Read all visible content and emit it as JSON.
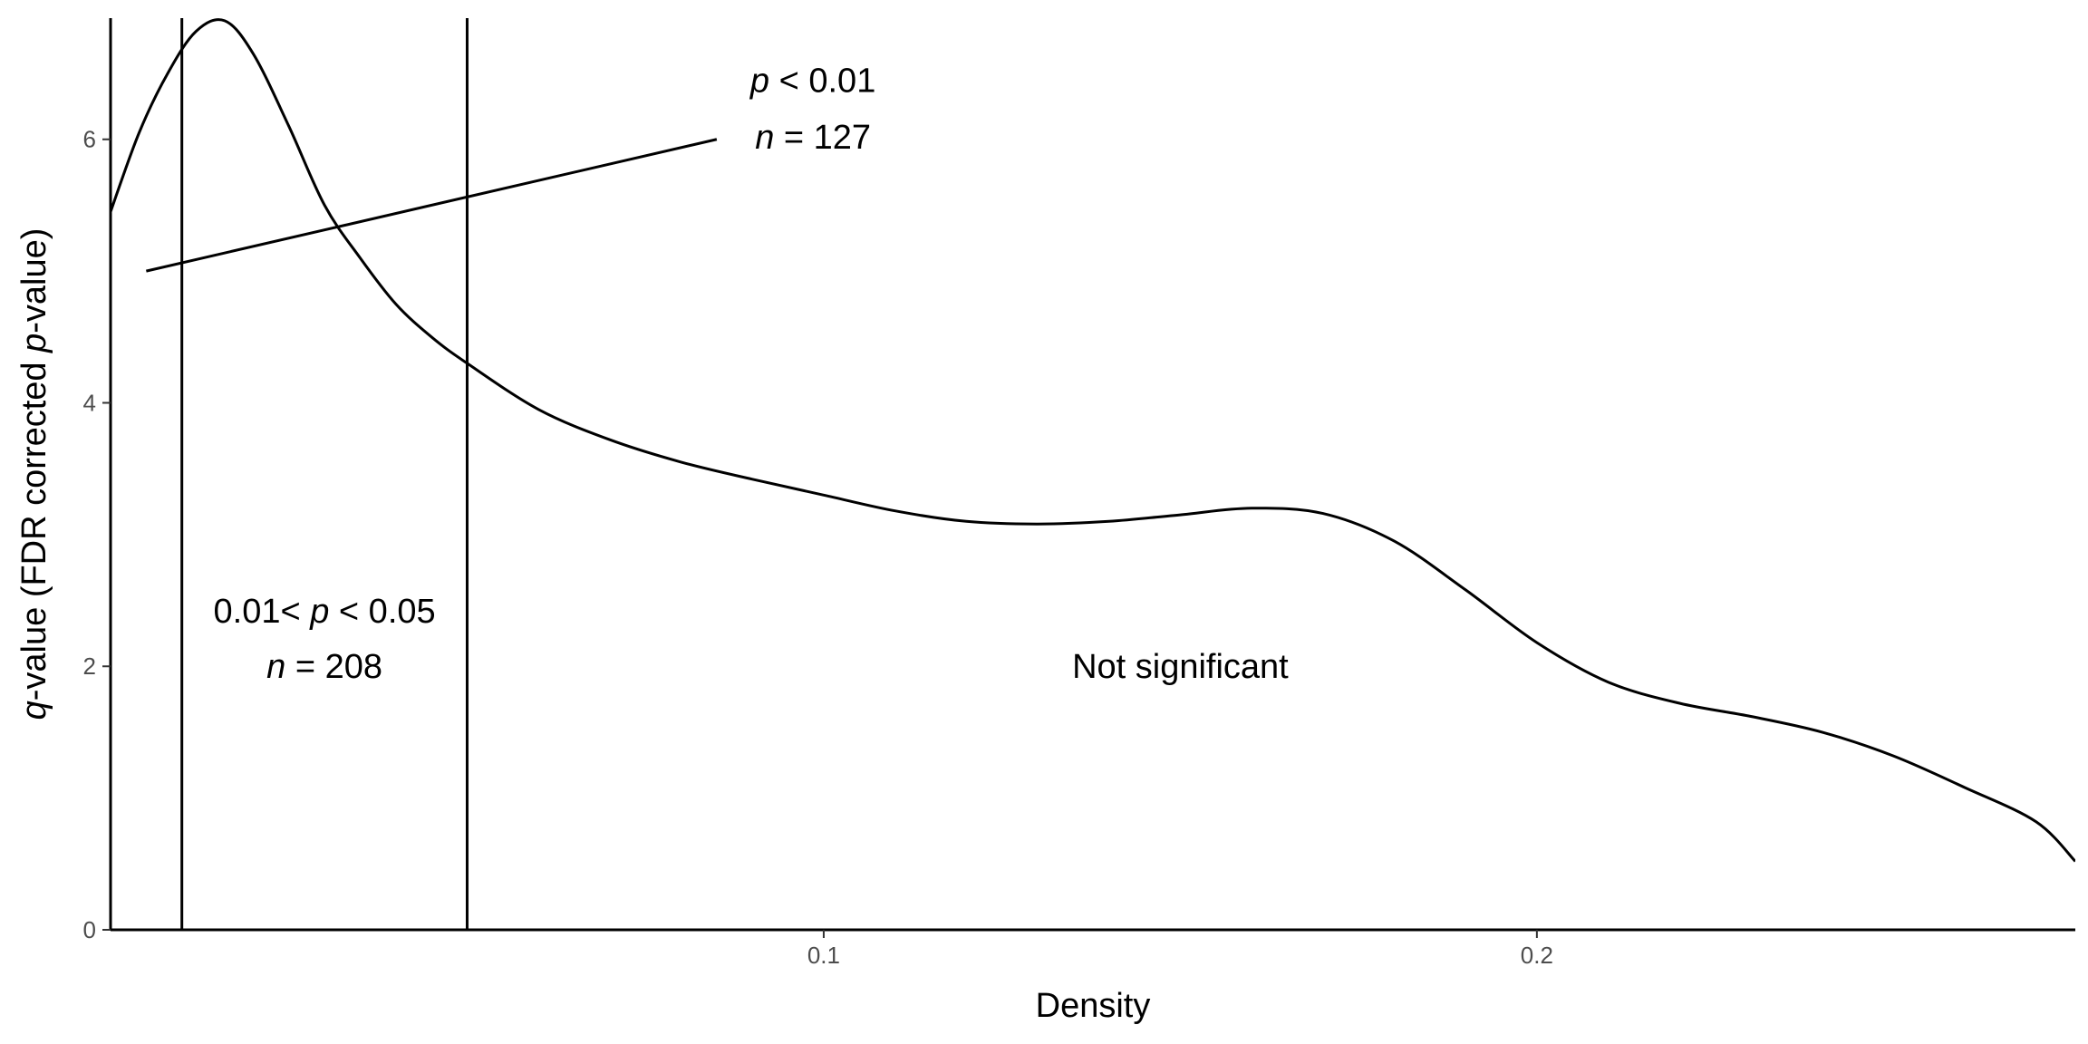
{
  "chart_data": {
    "type": "line",
    "xlabel": "Density",
    "ylabel": {
      "italic": "q",
      "text1": "-value (FDR corrected ",
      "italic2": "p",
      "text2": "-value)"
    },
    "xlim": [
      0.0,
      0.2755
    ],
    "ylim": [
      0,
      6.92
    ],
    "x_ticks": [
      {
        "value": 0.1,
        "label": "0.1"
      },
      {
        "value": 0.2,
        "label": "0.2"
      }
    ],
    "y_ticks": [
      {
        "value": 0,
        "label": "0"
      },
      {
        "value": 2,
        "label": "2"
      },
      {
        "value": 4,
        "label": "4"
      },
      {
        "value": 6,
        "label": "6"
      }
    ],
    "grid": false,
    "legend": "none",
    "series": [
      {
        "x": [
          0.0,
          0.004,
          0.008,
          0.012,
          0.016,
          0.02,
          0.025,
          0.03,
          0.035,
          0.04,
          0.045,
          0.05,
          0.06,
          0.07,
          0.08,
          0.09,
          0.1,
          0.11,
          0.12,
          0.13,
          0.14,
          0.15,
          0.16,
          0.17,
          0.18,
          0.19,
          0.2,
          0.21,
          0.22,
          0.23,
          0.24,
          0.25,
          0.26,
          0.27,
          0.2755
        ],
        "y": [
          5.45,
          6.05,
          6.5,
          6.82,
          6.9,
          6.65,
          6.1,
          5.5,
          5.1,
          4.75,
          4.5,
          4.3,
          3.95,
          3.72,
          3.55,
          3.42,
          3.3,
          3.18,
          3.1,
          3.08,
          3.1,
          3.15,
          3.2,
          3.16,
          2.95,
          2.58,
          2.18,
          1.88,
          1.72,
          1.62,
          1.5,
          1.32,
          1.08,
          0.82,
          0.52
        ]
      }
    ],
    "vlines": [
      0.0,
      0.01,
      0.05
    ],
    "segment": {
      "x1": 0.005,
      "y1": 5.0,
      "x2": 0.085,
      "y2": 6.0
    },
    "annotations": [
      {
        "name": "annotation-p001",
        "x": 0.0985,
        "lines": [
          {
            "y": 6.45,
            "parts": [
              {
                "t": "p",
                "i": true
              },
              {
                "t": " < 0.01",
                "i": false
              }
            ]
          },
          {
            "y": 6.02,
            "parts": [
              {
                "t": "n",
                "i": true
              },
              {
                "t": " = 127",
                "i": false
              }
            ]
          }
        ]
      },
      {
        "name": "annotation-p005",
        "x": 0.03,
        "lines": [
          {
            "y": 2.42,
            "parts": [
              {
                "t": "0.01< ",
                "i": false
              },
              {
                "t": "p",
                "i": true
              },
              {
                "t": " < 0.05",
                "i": false
              }
            ]
          },
          {
            "y": 2.0,
            "parts": [
              {
                "t": "n",
                "i": true
              },
              {
                "t": " = 208",
                "i": false
              }
            ]
          }
        ]
      },
      {
        "name": "annotation-not-significant",
        "x": 0.15,
        "lines": [
          {
            "y": 2.0,
            "parts": [
              {
                "t": "Not significant",
                "i": false
              }
            ]
          }
        ]
      }
    ]
  }
}
